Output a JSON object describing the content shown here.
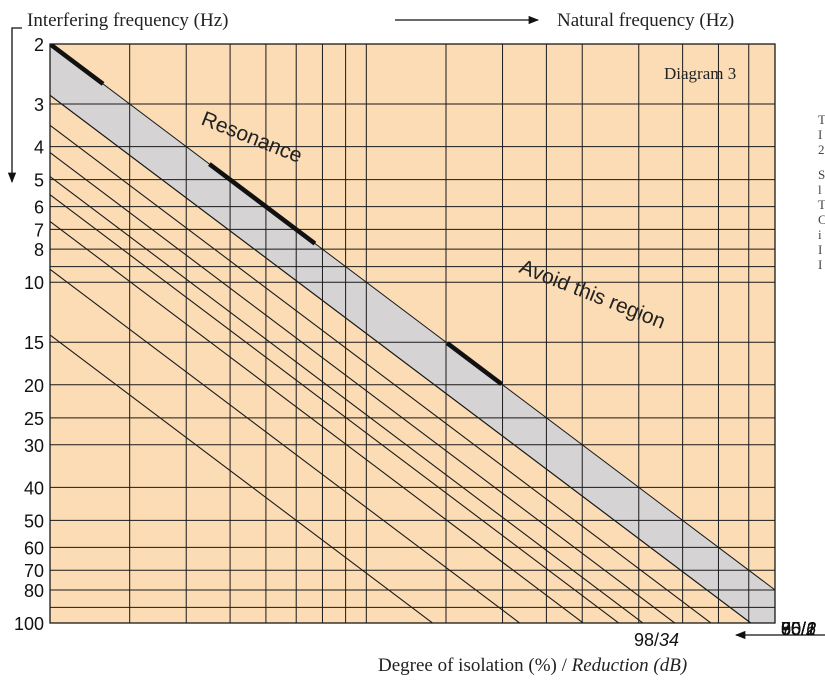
{
  "chart_data": {
    "type": "line",
    "title": "Diagram 3",
    "xlabel": "Natural frequency (Hz)",
    "ylabel": "Interfering frequency (Hz)",
    "bottom_label_plain": "Degree of isolation (%) / ",
    "bottom_label_italic": "Reduction (dB)",
    "y_axis": {
      "scale": "log",
      "range": [
        2,
        100
      ],
      "direction": "downward",
      "tick_labels": [
        "2",
        "3",
        "4",
        "5",
        "6",
        "7",
        "8",
        "10",
        "15",
        "20",
        "25",
        "30",
        "40",
        "50",
        "60",
        "70",
        "80",
        "100"
      ]
    },
    "x_axis": {
      "scale": "log",
      "range": [
        2,
        80
      ]
    },
    "grid": true,
    "series": [
      {
        "label": "0",
        "isolation_percent": 0,
        "reduction_db": "",
        "ratio": 1.414
      },
      {
        "label": "50/6",
        "isolation_percent": 50,
        "reduction_db": "6",
        "ratio": 1.732
      },
      {
        "label": "70/1",
        "isolation_percent": 70,
        "reduction_db": "1",
        "ratio": 2.082
      },
      {
        "label": "80/1",
        "isolation_percent": 80,
        "reduction_db": "1",
        "ratio": 2.449
      },
      {
        "label": "85/1",
        "isolation_percent": 85,
        "reduction_db": "1",
        "ratio": 2.769
      },
      {
        "label": "90/2",
        "isolation_percent": 90,
        "reduction_db": "2",
        "ratio": 3.317
      },
      {
        "label": "95/2",
        "isolation_percent": 95,
        "reduction_db": "2",
        "ratio": 4.583
      },
      {
        "label": "98/34",
        "isolation_percent": 98,
        "reduction_db": "34",
        "ratio": 7.141
      }
    ],
    "resonance_line": {
      "ratio": 1.0,
      "label": "Resonance"
    },
    "avoid_region": {
      "ratio_range": [
        1.0,
        1.414
      ],
      "label": "Avoid this region"
    },
    "colors": {
      "plot_background": "#fbdcb5",
      "avoid_region": "#d5d3d3",
      "grid": "#1a1a1a",
      "resonance": "#111111"
    }
  },
  "side_text": [
    "T",
    "I",
    "2",
    "",
    "S",
    "l",
    "T",
    "C",
    "i",
    "I",
    "I"
  ]
}
